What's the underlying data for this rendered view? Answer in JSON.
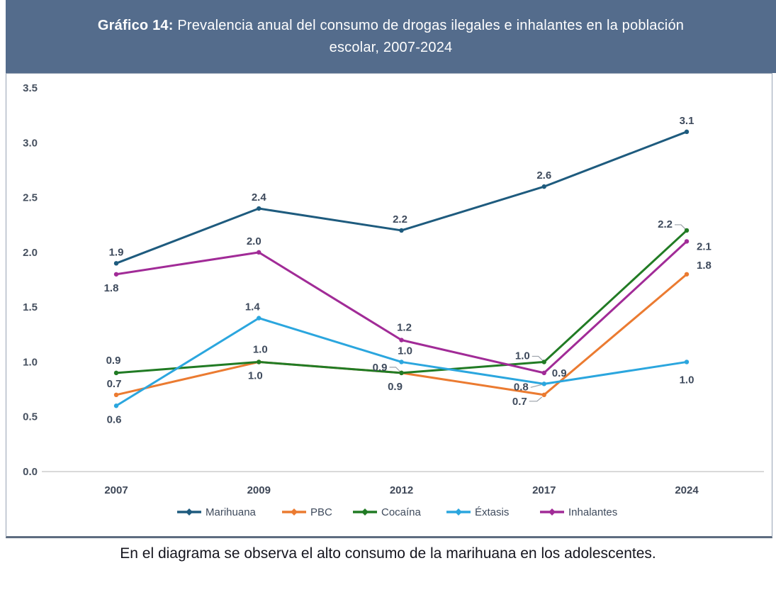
{
  "header": {
    "title_bold": "Gráfico 14:",
    "title_rest": " Prevalencia anual del consumo de drogas ilegales e inhalantes en la población escolar, 2007-2024",
    "background_color": "#546C8C"
  },
  "caption": "En el diagrama se observa el alto consumo de la marihuana en los adolescentes.",
  "chart_data": {
    "type": "line",
    "title": "Prevalencia anual del consumo de drogas ilegales e inhalantes en la población escolar, 2007-2024",
    "categories": [
      "2007",
      "2009",
      "2012",
      "2017",
      "2024"
    ],
    "series": [
      {
        "name": "Marihuana",
        "color": "#1E5B7E",
        "values": [
          1.9,
          2.4,
          2.2,
          2.6,
          3.1
        ]
      },
      {
        "name": "PBC",
        "color": "#EB7B31",
        "values": [
          0.7,
          1.0,
          0.9,
          0.7,
          1.8
        ]
      },
      {
        "name": "Cocaína",
        "color": "#217B24",
        "values": [
          0.9,
          1.0,
          0.9,
          1.0,
          2.2
        ]
      },
      {
        "name": "Éxtasis",
        "color": "#2BA6DE",
        "values": [
          0.6,
          1.4,
          1.0,
          0.8,
          1.0
        ]
      },
      {
        "name": "Inhalantes",
        "color": "#A12B97",
        "values": [
          1.8,
          2.0,
          1.2,
          0.9,
          2.1
        ]
      }
    ],
    "ylim": [
      0.0,
      3.5
    ],
    "yticks": [
      "0.0",
      "0.5",
      "1.0",
      "1.5",
      "2.0",
      "2.5",
      "3.0",
      "3.5"
    ],
    "grid": false,
    "legend_position": "bottom",
    "data_labels": true,
    "label_color": "#3E4A5C",
    "tick_color": "#46505F",
    "baseline_color": "#D9D9D9",
    "leader_line_color": "#9AA0A8"
  }
}
